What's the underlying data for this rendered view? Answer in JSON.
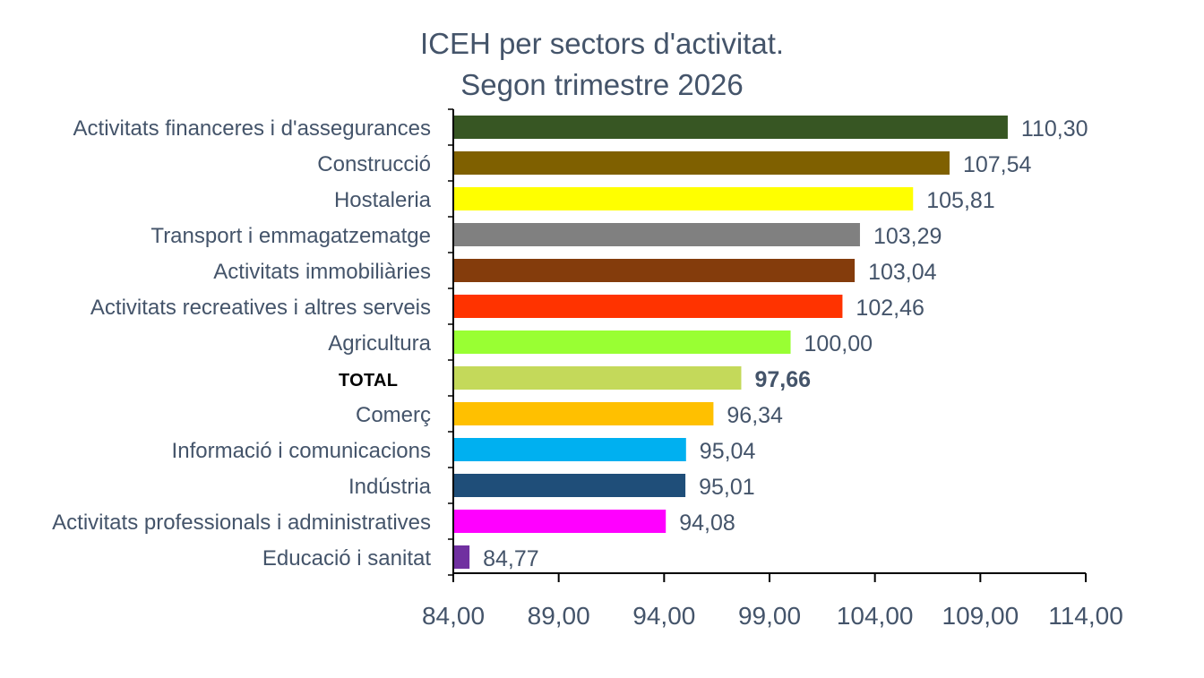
{
  "chart_data": {
    "type": "bar",
    "orientation": "horizontal",
    "title": [
      "ICEH per sectors d'activitat.",
      "Segon trimestre 2026"
    ],
    "categories": [
      "Activitats financeres i d'assegurances",
      "Construcció",
      "Hostaleria",
      "Transport i emmagatzematge",
      "Activitats immobiliàries",
      "Activitats recreatives i altres serveis",
      "Agricultura",
      "TOTAL",
      "Comerç",
      "Informació i comunicacions",
      "Indústria",
      "Activitats professionals i administratives",
      "Educació i sanitat"
    ],
    "values": [
      110.3,
      107.54,
      105.81,
      103.29,
      103.04,
      102.46,
      100.0,
      97.66,
      96.34,
      95.04,
      95.01,
      94.08,
      84.77
    ],
    "value_labels": [
      "110,30",
      "107,54",
      "105,81",
      "103,29",
      "103,04",
      "102,46",
      "100,00",
      "97,66",
      "96,34",
      "95,04",
      "95,01",
      "94,08",
      "84,77"
    ],
    "colors": [
      "#375623",
      "#7f6000",
      "#ffff00",
      "#808080",
      "#843c0c",
      "#ff3300",
      "#99ff33",
      "#c4d95a",
      "#ffc000",
      "#00b0f0",
      "#1f4e79",
      "#ff00ff",
      "#7030a0"
    ],
    "emphasis": "TOTAL",
    "xlim": [
      84,
      114
    ],
    "xticks": [
      84,
      89,
      94,
      99,
      104,
      109,
      114
    ],
    "xtick_labels": [
      "84,00",
      "89,00",
      "94,00",
      "99,00",
      "104,00",
      "109,00",
      "114,00"
    ],
    "grid": false,
    "legend": "none"
  }
}
